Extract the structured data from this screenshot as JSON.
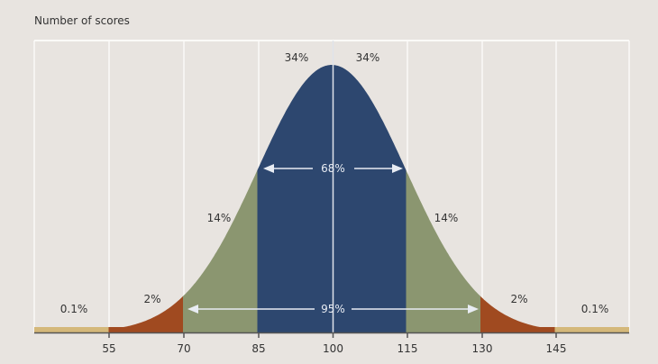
{
  "chart_data": {
    "type": "area",
    "title": "",
    "ylabel": "Number of scores",
    "xlabel": "",
    "x_ticks": [
      55,
      70,
      85,
      100,
      115,
      130,
      145
    ],
    "xlim": [
      40,
      160
    ],
    "mean": 100,
    "sd": 15,
    "grid": true,
    "regions": [
      {
        "range": [
          40,
          55
        ],
        "label": "0.1%",
        "color": "#d4b87a"
      },
      {
        "range": [
          55,
          70
        ],
        "label": "2%",
        "color": "#a04a20"
      },
      {
        "range": [
          70,
          85
        ],
        "label": "14%",
        "color": "#8b9670"
      },
      {
        "range": [
          85,
          100
        ],
        "label": "34%",
        "color": "#2d476f"
      },
      {
        "range": [
          100,
          115
        ],
        "label": "34%",
        "color": "#2d476f"
      },
      {
        "range": [
          115,
          130
        ],
        "label": "14%",
        "color": "#8b9670"
      },
      {
        "range": [
          130,
          145
        ],
        "label": "2%",
        "color": "#a04a20"
      },
      {
        "range": [
          145,
          160
        ],
        "label": "0.1%",
        "color": "#d4b87a"
      }
    ],
    "annotations": [
      {
        "text": "68%",
        "range": [
          85,
          115
        ]
      },
      {
        "text": "95%",
        "range": [
          70,
          130
        ]
      }
    ]
  },
  "labels": {
    "y_axis": "Number of scores",
    "ticks": [
      "55",
      "70",
      "85",
      "100",
      "115",
      "130",
      "145"
    ],
    "pct_left_tail": "0.1%",
    "pct_left_2": "2%",
    "pct_left_14": "14%",
    "pct_left_34": "34%",
    "pct_right_34": "34%",
    "pct_right_14": "14%",
    "pct_right_2": "2%",
    "pct_right_tail": "0.1%",
    "band_68": "68%",
    "band_95": "95%"
  }
}
